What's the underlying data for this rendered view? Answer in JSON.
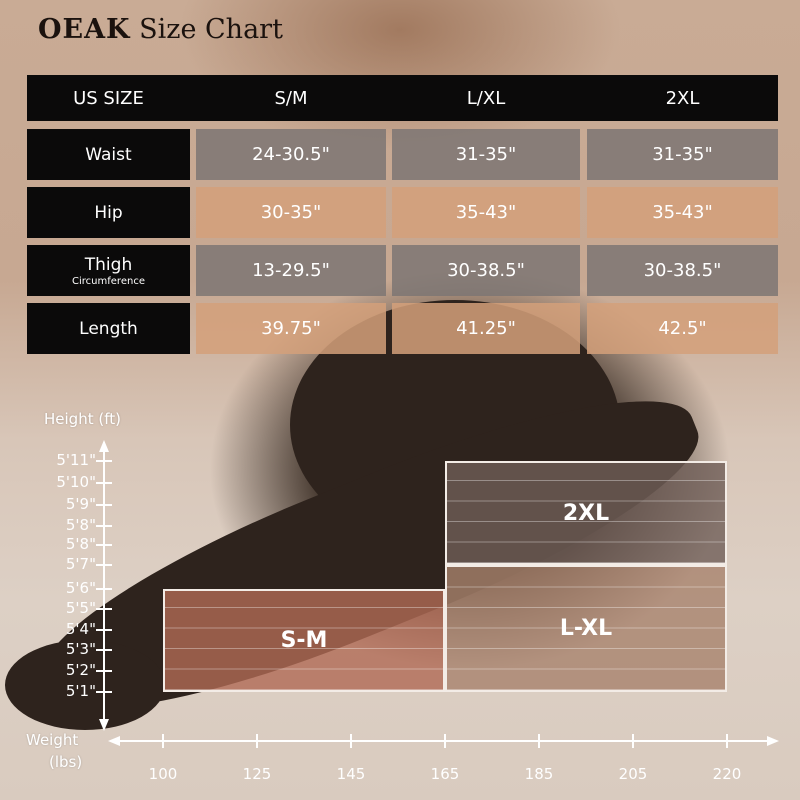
{
  "title": {
    "brand": "OEAK",
    "text": "Size Chart"
  },
  "table": {
    "headers": [
      "US SIZE",
      "S/M",
      "L/XL",
      "2XL"
    ],
    "rows": [
      {
        "label": "Waist",
        "sublabel": "",
        "values": [
          "24-30.5\"",
          "31-35\"",
          "31-35\""
        ],
        "style": "gray"
      },
      {
        "label": "Hip",
        "sublabel": "",
        "values": [
          "30-35\"",
          "35-43\"",
          "35-43\""
        ],
        "style": "tan"
      },
      {
        "label": "Thigh",
        "sublabel": "Circumference",
        "values": [
          "13-29.5\"",
          "30-38.5\"",
          "30-38.5\""
        ],
        "style": "gray"
      },
      {
        "label": "Length",
        "sublabel": "",
        "values": [
          "39.75\"",
          "41.25\"",
          "42.5\""
        ],
        "style": "tan"
      }
    ]
  },
  "chart_data": {
    "type": "table",
    "ylabel": "Height (ft)",
    "xlabel_line1": "Weight",
    "xlabel_line2": "(lbs)",
    "y_ticks": [
      "5'11\"",
      "5'10\"",
      "5'9\"",
      "5'8\"",
      "5'8\"",
      "5'7\"",
      "5'6\"",
      "5'5\"",
      "5'4\"",
      "5'3\"",
      "5'2\"",
      "5'1\""
    ],
    "x_ticks": [
      "100",
      "125",
      "145",
      "165",
      "185",
      "205",
      "220"
    ],
    "regions": [
      {
        "label": "S-M",
        "weight": [
          "100",
          "165"
        ],
        "height": [
          "5'1\"",
          "5'6\""
        ],
        "color": "#b06a55"
      },
      {
        "label": "L-XL",
        "weight": [
          "165",
          "220"
        ],
        "height": [
          "5'1\"",
          "5'7\""
        ],
        "color": "#a8826d"
      },
      {
        "label": "2XL",
        "weight": [
          "165",
          "220"
        ],
        "height": [
          "5'7\"",
          "5'11\""
        ],
        "color": "#6f5e58"
      }
    ]
  }
}
